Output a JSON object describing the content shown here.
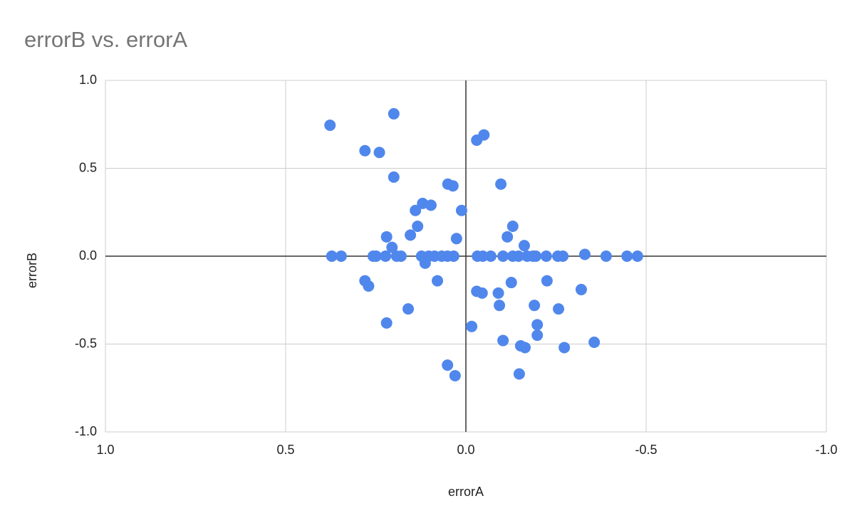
{
  "chart_data": {
    "type": "scatter",
    "title": "errorB vs. errorA",
    "x_label": "errorA",
    "y_label": "errorB",
    "x": [
      0.377,
      0.2,
      0.28,
      0.24,
      -0.03,
      -0.05,
      0.2,
      0.05,
      0.036,
      -0.097,
      0.12,
      0.097,
      0.14,
      0.012,
      0.134,
      -0.13,
      0.22,
      0.154,
      0.026,
      -0.115,
      0.205,
      -0.162,
      -0.33,
      0.113,
      0.372,
      0.346,
      0.257,
      0.249,
      0.223,
      0.192,
      0.18,
      0.123,
      0.103,
      0.087,
      0.067,
      0.051,
      0.034,
      -0.032,
      -0.047,
      -0.069,
      -0.103,
      -0.13,
      -0.146,
      -0.17,
      -0.186,
      -0.194,
      -0.223,
      -0.255,
      -0.269,
      -0.389,
      -0.447,
      -0.476,
      0.28,
      0.27,
      0.079,
      -0.03,
      -0.045,
      -0.09,
      -0.126,
      -0.225,
      -0.32,
      -0.093,
      -0.19,
      -0.257,
      0.16,
      0.22,
      -0.016,
      -0.198,
      -0.198,
      -0.103,
      -0.356,
      -0.152,
      -0.164,
      -0.273,
      0.051,
      0.03,
      -0.148
    ],
    "series": [
      {
        "name": "errorB",
        "color": "#5087ec",
        "values": [
          0.745,
          0.81,
          0.6,
          0.59,
          0.66,
          0.69,
          0.45,
          0.41,
          0.4,
          0.41,
          0.3,
          0.29,
          0.26,
          0.26,
          0.17,
          0.17,
          0.11,
          0.12,
          0.1,
          0.11,
          0.05,
          0.06,
          0.01,
          -0.04,
          0,
          0,
          0,
          0,
          0,
          0,
          0,
          0,
          0,
          0,
          0,
          0,
          0,
          0,
          0,
          0,
          0,
          0,
          0,
          0,
          0,
          0,
          0,
          0,
          0,
          0,
          0,
          0,
          -0.14,
          -0.17,
          -0.14,
          -0.2,
          -0.21,
          -0.21,
          -0.15,
          -0.14,
          -0.19,
          -0.28,
          -0.28,
          -0.3,
          -0.3,
          -0.38,
          -0.4,
          -0.39,
          -0.45,
          -0.48,
          -0.49,
          -0.51,
          -0.52,
          -0.52,
          -0.62,
          -0.68,
          -0.67
        ]
      }
    ],
    "xlim": [
      1,
      -1
    ],
    "xticks": [
      {
        "value": 1,
        "label": "1.0"
      },
      0.5,
      {
        "value": 0,
        "label": "0.0"
      },
      -0.5,
      {
        "value": -1,
        "label": "-1.0"
      }
    ],
    "ylim": [
      -1,
      1
    ],
    "yticks": [
      {
        "value": -1,
        "label": "-1.0"
      },
      -0.5,
      {
        "value": 0,
        "label": "0.0"
      },
      0.5,
      {
        "value": 1,
        "label": "1.0"
      }
    ],
    "grid": true
  }
}
